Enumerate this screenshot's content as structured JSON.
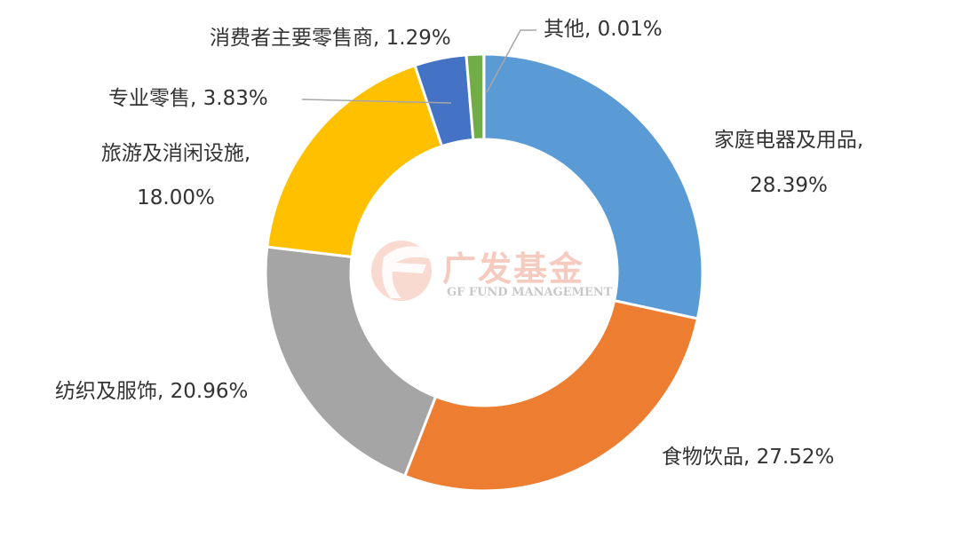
{
  "chart_data": {
    "type": "pie",
    "donut": true,
    "slices": [
      {
        "label": "家庭电器及用品",
        "value": 28.39,
        "value_label": "28.39%",
        "color": "#5b9bd5"
      },
      {
        "label": "食物饮品",
        "value": 27.52,
        "value_label": "27.52%",
        "color": "#ed7d31"
      },
      {
        "label": "纺织及服饰",
        "value": 20.96,
        "value_label": "20.96%",
        "color": "#a5a5a5"
      },
      {
        "label": "旅游及消闲设施",
        "value": 18.0,
        "value_label": "18.00%",
        "color": "#ffc000"
      },
      {
        "label": "专业零售",
        "value": 3.83,
        "value_label": "3.83%",
        "color": "#4472c4"
      },
      {
        "label": "消费者主要零售商",
        "value": 1.29,
        "value_label": "1.29%",
        "color": "#70ad47"
      },
      {
        "label": "其他",
        "value": 0.01,
        "value_label": "0.01%",
        "color": "#264478"
      }
    ]
  },
  "watermark": {
    "text_cn": "广发基金",
    "text_en": "GF FUND MANAGEMENT",
    "color": "#f4c2b5"
  }
}
